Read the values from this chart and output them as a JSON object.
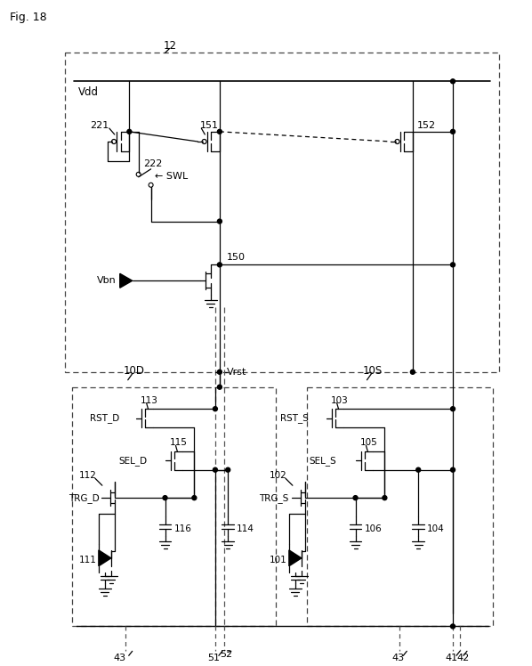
{
  "fig_label": "Fig. 18",
  "labels": {
    "fig": "Fig. 18",
    "box12": "12",
    "vdd": "Vdd",
    "n221": "221",
    "n151": "151",
    "n152": "152",
    "n222": "222",
    "swl": "← SWL",
    "n150": "150",
    "vbn": "Vbn",
    "vrst": "Vrst",
    "box10D": "10D",
    "box10S": "10S",
    "n113": "113",
    "rst_d": "RST_D",
    "n115": "115",
    "sel_d": "SEL_D",
    "n112": "112",
    "n111": "111",
    "n116": "116",
    "n114": "114",
    "trg_d": "TRG_D",
    "n103": "103",
    "rst_s": "RST_S",
    "n105": "105",
    "sel_s": "SEL_S",
    "n102": "102",
    "n101": "101",
    "n106": "106",
    "n104": "104",
    "trg_s": "TRG_S",
    "n43a": "43",
    "n43b": "43",
    "n52": "52",
    "n51": "51",
    "n41": "41",
    "n42": "42"
  }
}
